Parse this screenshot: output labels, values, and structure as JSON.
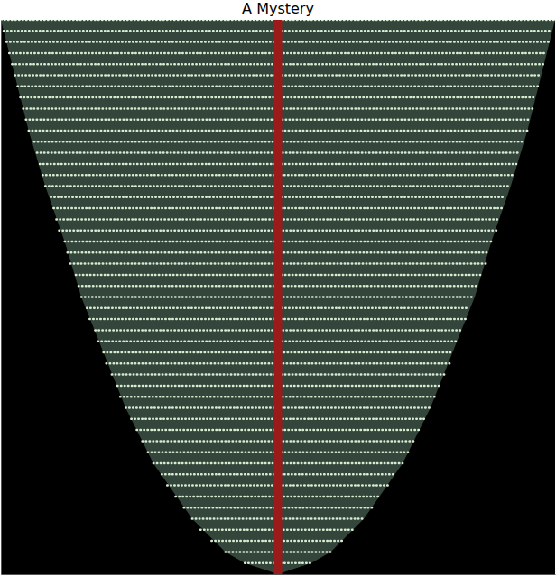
{
  "chart_data": {
    "type": "line",
    "title": "A Mystery",
    "xlim": [
      -1,
      1
    ],
    "ylim": [
      0,
      1
    ],
    "tick_labels": false,
    "series": [
      {
        "type": "area",
        "color": "#34453b",
        "x": [
          -1,
          -0.95,
          -0.9,
          -0.84,
          -0.77,
          -0.71,
          -0.63,
          -0.55,
          -0.45,
          -0.31,
          -0.19,
          -0.12,
          0,
          0.12,
          0.19,
          0.31,
          0.45,
          0.55,
          0.63,
          0.71,
          0.77,
          0.84,
          0.9,
          0.95,
          1
        ],
        "y": [
          1,
          0.9,
          0.8,
          0.7,
          0.6,
          0.5,
          0.4,
          0.3,
          0.2,
          0.1,
          0.04,
          0.02,
          0,
          0.02,
          0.04,
          0.1,
          0.2,
          0.3,
          0.4,
          0.5,
          0.6,
          0.7,
          0.8,
          0.9,
          1
        ]
      },
      {
        "type": "line",
        "color": "#d8ecd2",
        "line_style": "dotted",
        "x": [
          -0.12,
          0.12,
          null,
          -0.19,
          0.19,
          null,
          -0.24,
          0.24,
          null,
          -0.28,
          0.28,
          null,
          -0.31,
          0.31,
          null,
          -0.34,
          0.34,
          null,
          -0.37,
          0.37,
          null,
          -0.4,
          0.4,
          null,
          -0.42,
          0.42,
          null,
          -0.45,
          0.45,
          null,
          -0.47,
          0.47,
          null,
          -0.49,
          0.49,
          null,
          -0.51,
          0.51,
          null,
          -0.53,
          0.53,
          null,
          -0.55,
          0.55,
          null,
          -0.57,
          0.57,
          null,
          -0.58,
          0.58,
          null,
          -0.6,
          0.6,
          null,
          -0.62,
          0.62,
          null,
          -0.63,
          0.63,
          null,
          -0.65,
          0.65,
          null,
          -0.66,
          0.66,
          null,
          -0.68,
          0.68,
          null,
          -0.69,
          0.69,
          null,
          -0.71,
          0.71,
          null,
          -0.72,
          0.72,
          null,
          -0.73,
          0.73,
          null,
          -0.75,
          0.75,
          null,
          -0.76,
          0.76,
          null,
          -0.77,
          0.77,
          null,
          -0.79,
          0.79,
          null,
          -0.8,
          0.8,
          null,
          -0.81,
          0.81,
          null,
          -0.82,
          0.82,
          null,
          -0.84,
          0.84,
          null,
          -0.85,
          0.85,
          null,
          -0.86,
          0.86,
          null,
          -0.87,
          0.87,
          null,
          -0.88,
          0.88,
          null,
          -0.9,
          0.9,
          null,
          -0.91,
          0.91,
          null,
          -0.92,
          0.92,
          null,
          -0.93,
          0.93,
          null,
          -0.94,
          0.94,
          null,
          -0.95,
          0.95,
          null,
          -0.96,
          0.96,
          null,
          -0.97,
          0.97,
          null,
          -0.98,
          0.98,
          null,
          -0.99,
          0.99,
          null,
          -1,
          1
        ],
        "y": [
          0.02,
          0.02,
          null,
          0.04,
          0.04,
          null,
          0.06,
          0.06,
          null,
          0.08,
          0.08,
          null,
          0.1,
          0.1,
          null,
          0.12,
          0.12,
          null,
          0.14,
          0.14,
          null,
          0.16,
          0.16,
          null,
          0.18,
          0.18,
          null,
          0.2,
          0.2,
          null,
          0.22,
          0.22,
          null,
          0.24,
          0.24,
          null,
          0.26,
          0.26,
          null,
          0.28,
          0.28,
          null,
          0.3,
          0.3,
          null,
          0.32,
          0.32,
          null,
          0.34,
          0.34,
          null,
          0.36,
          0.36,
          null,
          0.38,
          0.38,
          null,
          0.4,
          0.4,
          null,
          0.42,
          0.42,
          null,
          0.44,
          0.44,
          null,
          0.46,
          0.46,
          null,
          0.48,
          0.48,
          null,
          0.5,
          0.5,
          null,
          0.52,
          0.52,
          null,
          0.54,
          0.54,
          null,
          0.56,
          0.56,
          null,
          0.58,
          0.58,
          null,
          0.6,
          0.6,
          null,
          0.62,
          0.62,
          null,
          0.64,
          0.64,
          null,
          0.66,
          0.66,
          null,
          0.68,
          0.68,
          null,
          0.7,
          0.7,
          null,
          0.72,
          0.72,
          null,
          0.74,
          0.74,
          null,
          0.76,
          0.76,
          null,
          0.78,
          0.78,
          null,
          0.8,
          0.8,
          null,
          0.82,
          0.82,
          null,
          0.84,
          0.84,
          null,
          0.86,
          0.86,
          null,
          0.88,
          0.88,
          null,
          0.9,
          0.9,
          null,
          0.92,
          0.92,
          null,
          0.94,
          0.94,
          null,
          0.96,
          0.96,
          null,
          0.98,
          0.98,
          null,
          1,
          1
        ]
      },
      {
        "type": "line",
        "color": "#9b1b1b",
        "line_style": "solid",
        "x": [
          0,
          0
        ],
        "y": [
          0,
          1
        ]
      }
    ]
  }
}
